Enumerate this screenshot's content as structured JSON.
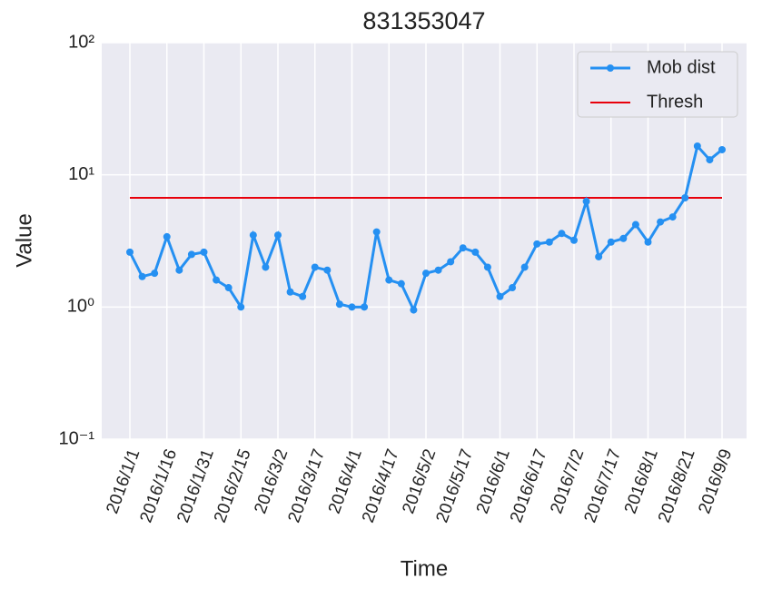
{
  "chart_data": {
    "type": "line",
    "title": "831353047",
    "xlabel": "Time",
    "ylabel": "Value",
    "log_y": true,
    "grid": true,
    "legend": "upper right",
    "ylim": [
      0.1,
      100
    ],
    "yticks": [
      {
        "value": 0.1,
        "label": "10⁻¹"
      },
      {
        "value": 1,
        "label": "10⁰"
      },
      {
        "value": 10,
        "label": "10¹"
      },
      {
        "value": 100,
        "label": "10²"
      }
    ],
    "categories": [
      "2016/1/1",
      null,
      null,
      "2016/1/16",
      null,
      null,
      "2016/1/31",
      null,
      null,
      "2016/2/15",
      null,
      null,
      "2016/3/2",
      null,
      null,
      "2016/3/17",
      null,
      null,
      "2016/4/1",
      null,
      null,
      "2016/4/17",
      null,
      null,
      "2016/5/2",
      null,
      null,
      "2016/5/17",
      null,
      null,
      "2016/6/1",
      null,
      null,
      "2016/6/17",
      null,
      null,
      "2016/7/2",
      null,
      null,
      "2016/7/17",
      null,
      null,
      "2016/8/1",
      null,
      null,
      "2016/8/21",
      null,
      null,
      "2016/9/9"
    ],
    "series": [
      {
        "name": "Mob dist",
        "color": "#2590f2",
        "values": [
          2.6,
          1.7,
          1.8,
          3.4,
          1.9,
          2.5,
          2.6,
          1.6,
          1.4,
          1.0,
          3.5,
          2.0,
          3.5,
          1.3,
          1.2,
          2.0,
          1.9,
          1.05,
          1.0,
          1.0,
          3.7,
          1.6,
          1.5,
          0.95,
          1.8,
          1.9,
          2.2,
          2.8,
          2.6,
          2.0,
          1.2,
          1.4,
          2.0,
          3.0,
          3.1,
          3.6,
          3.2,
          6.3,
          2.4,
          3.1,
          3.3,
          4.2,
          3.1,
          4.4,
          4.8,
          6.7,
          16.5,
          13.0,
          15.5
        ]
      }
    ],
    "thresholds": [
      {
        "name": "Thresh",
        "color": "#e8000b",
        "value": 6.7
      }
    ]
  }
}
